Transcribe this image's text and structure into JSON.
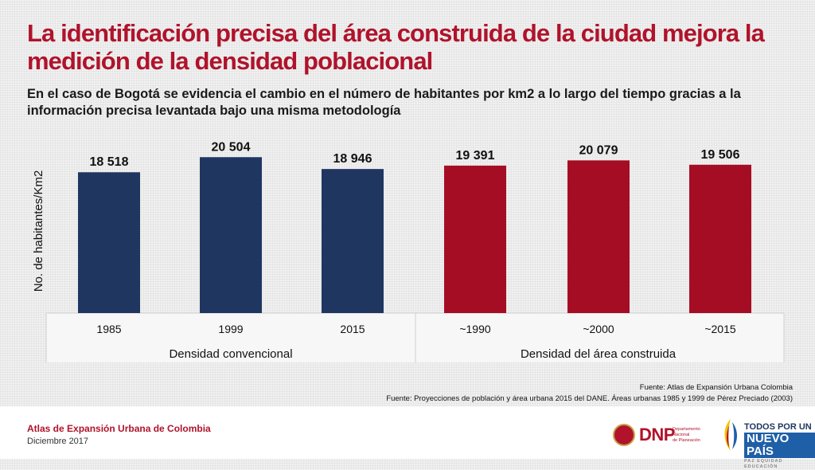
{
  "slide": {
    "title": "La identificación precisa del área construida de la ciudad mejora la medición de la densidad poblacional",
    "subtitle": "En el caso de Bogotá se evidencia el cambio en el número de habitantes por km2 a lo largo del tiempo gracias a la información precisa levantada bajo una misma metodología",
    "sources": [
      "Fuente: Atlas de Expansión Urbana Colombia",
      "Fuente: Proyecciones de población y área urbana 2015 del DANE. Áreas urbanas 1985 y 1999 de Pérez Preciado (2003)"
    ]
  },
  "footer": {
    "title": "Atlas de Expansión Urbana de Colombia",
    "date": "Diciembre 2017",
    "dnp_logo": "DNP",
    "dnp_logo_sub": [
      "Departamento",
      "Nacional",
      "de Planeación"
    ],
    "gov_logo": [
      "TODOS POR UN",
      "NUEVO PAÍS",
      "PAZ  EQUIDAD  EDUCACIÓN"
    ]
  },
  "chart_data": {
    "type": "bar",
    "ylabel": "No. de habitantes/Km2",
    "ylim": [
      0,
      22000
    ],
    "grid": false,
    "groups": [
      {
        "name": "Densidad convencional",
        "color": "#1f3661",
        "categories": [
          "1985",
          "1999",
          "2015"
        ],
        "values": [
          18518,
          20504,
          18946
        ],
        "labels": [
          "18 518",
          "20 504",
          "18 946"
        ]
      },
      {
        "name": "Densidad del área construida",
        "color": "#a50d24",
        "categories": [
          "~1990",
          "~2000",
          "~2015"
        ],
        "values": [
          19391,
          20079,
          19506
        ],
        "labels": [
          "19 391",
          "20 079",
          "19 506"
        ]
      }
    ]
  }
}
